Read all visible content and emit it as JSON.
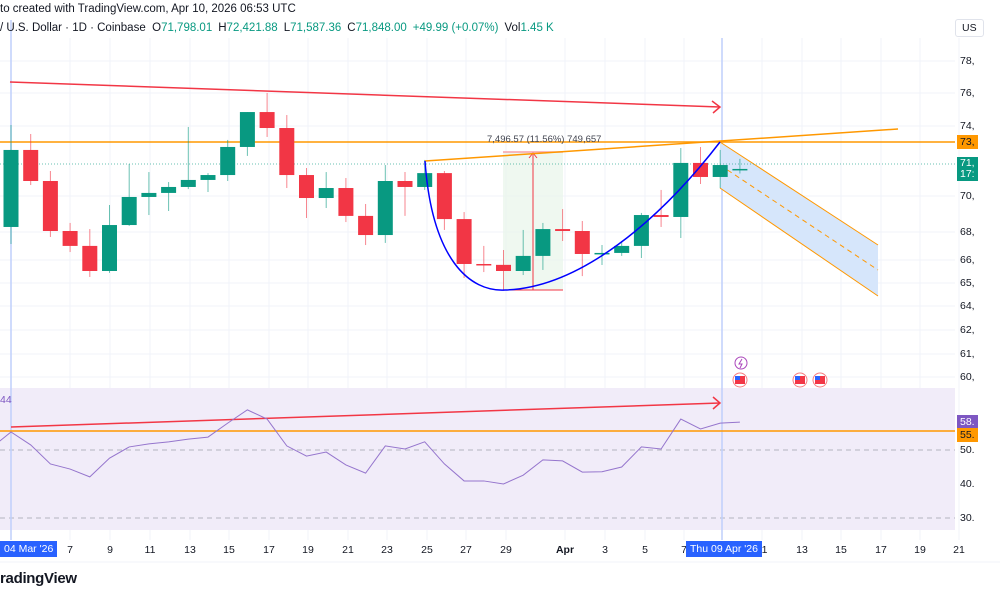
{
  "header": {
    "line1": "to created with TradingView.com, Apr 10, 2026 06:53 UTC",
    "symbol": "/ U.S. Dollar · 1D · Coinbase",
    "ohlc": [
      {
        "k": "O",
        "v": "71,798.01"
      },
      {
        "k": "H",
        "v": "72,421.88"
      },
      {
        "k": "L",
        "v": "71,587.36"
      },
      {
        "k": "C",
        "v": "71,848.00"
      },
      {
        "k": "",
        "v": "+49.99 (+0.07%)"
      },
      {
        "k": "Vol",
        "v": "1.45 K"
      }
    ]
  },
  "currency_button": "US",
  "price_axis": [
    "78,",
    "76,",
    "74,",
    "70,",
    "68,",
    "66,",
    "65,",
    "64,",
    "62,",
    "61,",
    "60,"
  ],
  "price_badges": {
    "hline": "73,",
    "last_price": "71,",
    "countdown": "17:"
  },
  "rsi_axis": [
    "50.",
    "40.",
    "30."
  ],
  "rsi_badges": {
    "rsi": "58.",
    "hline": "55."
  },
  "rsi_header": "44",
  "measure_label": "7,496.57 (11.56%) 749,657",
  "date_axis": [
    "7",
    "9",
    "11",
    "13",
    "15",
    "17",
    "19",
    "21",
    "23",
    "25",
    "27",
    "29",
    "Apr",
    "3",
    "5",
    "7",
    "11",
    "13",
    "15",
    "17",
    "19",
    "21"
  ],
  "date_badges": {
    "left": "04 Mar '26",
    "cursor": "Thu 09 Apr '26"
  },
  "logo": "radingView",
  "colors": {
    "up": "#089981",
    "down": "#f23645",
    "rsi": "#7e57c2",
    "hline": "#ff9800",
    "trend": "#f23645",
    "curve": "#0000ff",
    "channel": "#bbd9fb"
  },
  "events": [
    {
      "date": "Apr 9",
      "icon": "lightning-icon"
    },
    {
      "date": "Apr 9",
      "icon": "us-flag-icon"
    },
    {
      "date": "Apr 12",
      "icon": "us-flag-icon"
    },
    {
      "date": "Apr 13",
      "icon": "us-flag-icon"
    }
  ],
  "chart_data": {
    "type": "candlestick",
    "interval": "1D",
    "y_scale": "price (USD)",
    "dates": [
      "Mar 4",
      "Mar 5",
      "Mar 6",
      "Mar 7",
      "Mar 8",
      "Mar 9",
      "Mar 10",
      "Mar 11",
      "Mar 12",
      "Mar 13",
      "Mar 14",
      "Mar 15",
      "Mar 16",
      "Mar 17",
      "Mar 18",
      "Mar 19",
      "Mar 20",
      "Mar 21",
      "Mar 22",
      "Mar 23",
      "Mar 24",
      "Mar 25",
      "Mar 26",
      "Mar 27",
      "Mar 28",
      "Mar 29",
      "Mar 30",
      "Mar 31",
      "Apr 1",
      "Apr 2",
      "Apr 3",
      "Apr 4",
      "Apr 5",
      "Apr 6",
      "Apr 7",
      "Apr 8",
      "Apr 9",
      "Apr 10"
    ],
    "ohlc": [
      [
        68540,
        74350,
        67570,
        72930
      ],
      [
        72930,
        73840,
        70930,
        71160
      ],
      [
        71160,
        71730,
        67970,
        68310
      ],
      [
        68310,
        68770,
        67110,
        67460
      ],
      [
        67460,
        68420,
        65690,
        66030
      ],
      [
        66030,
        69790,
        65920,
        68650
      ],
      [
        68650,
        72130,
        68600,
        70250
      ],
      [
        70250,
        71670,
        69220,
        70480
      ],
      [
        70480,
        71100,
        69450,
        70820
      ],
      [
        70820,
        74240,
        70700,
        71220
      ],
      [
        71220,
        71610,
        70530,
        71500
      ],
      [
        71500,
        73500,
        71160,
        73100
      ],
      [
        73100,
        75090,
        72590,
        75090
      ],
      [
        75090,
        76180,
        73670,
        74180
      ],
      [
        74180,
        74920,
        70760,
        71500
      ],
      [
        71500,
        71900,
        69050,
        70190
      ],
      [
        70190,
        71670,
        69620,
        70760
      ],
      [
        70760,
        71330,
        68820,
        69170
      ],
      [
        69170,
        69850,
        67510,
        68080
      ],
      [
        68080,
        72070,
        67630,
        71160
      ],
      [
        71160,
        71670,
        69170,
        70820
      ],
      [
        70820,
        72360,
        70650,
        71610
      ],
      [
        71610,
        71730,
        68370,
        68990
      ],
      [
        68990,
        69390,
        65630,
        66430
      ],
      [
        66430,
        67460,
        65970,
        66380
      ],
      [
        66380,
        67230,
        64950,
        66030
      ],
      [
        66030,
        68370,
        65800,
        66890
      ],
      [
        66890,
        68770,
        66090,
        68420
      ],
      [
        68420,
        69560,
        67740,
        68310
      ],
      [
        68310,
        68880,
        65740,
        67000
      ],
      [
        67000,
        67510,
        66370,
        67060
      ],
      [
        67060,
        67740,
        66890,
        67460
      ],
      [
        67460,
        69340,
        66770,
        69220
      ],
      [
        69220,
        70650,
        68540,
        69110
      ],
      [
        69110,
        73040,
        67910,
        72190
      ],
      [
        72190,
        73100,
        70990,
        71390
      ],
      [
        71390,
        72930,
        70760,
        72070
      ],
      [
        71798.01,
        72421.88,
        71587.36,
        71848.0
      ]
    ],
    "rsi": {
      "dates_from": "Mar 3",
      "values": [
        50.6,
        55.3,
        51.5,
        45.9,
        44.4,
        42.1,
        47.6,
        50.9,
        51.8,
        52.4,
        53.2,
        53.8,
        57.9,
        61.8,
        59.1,
        51.2,
        48.2,
        49.4,
        45.6,
        43.2,
        51.2,
        50.3,
        52.4,
        45.9,
        40.9,
        40.9,
        40.0,
        42.6,
        47.1,
        46.8,
        43.5,
        43.6,
        45.0,
        50.9,
        50.3,
        59.1,
        56.2,
        57.9,
        58.2
      ],
      "levels": [
        50,
        30
      ],
      "hline": 55.6
    }
  }
}
